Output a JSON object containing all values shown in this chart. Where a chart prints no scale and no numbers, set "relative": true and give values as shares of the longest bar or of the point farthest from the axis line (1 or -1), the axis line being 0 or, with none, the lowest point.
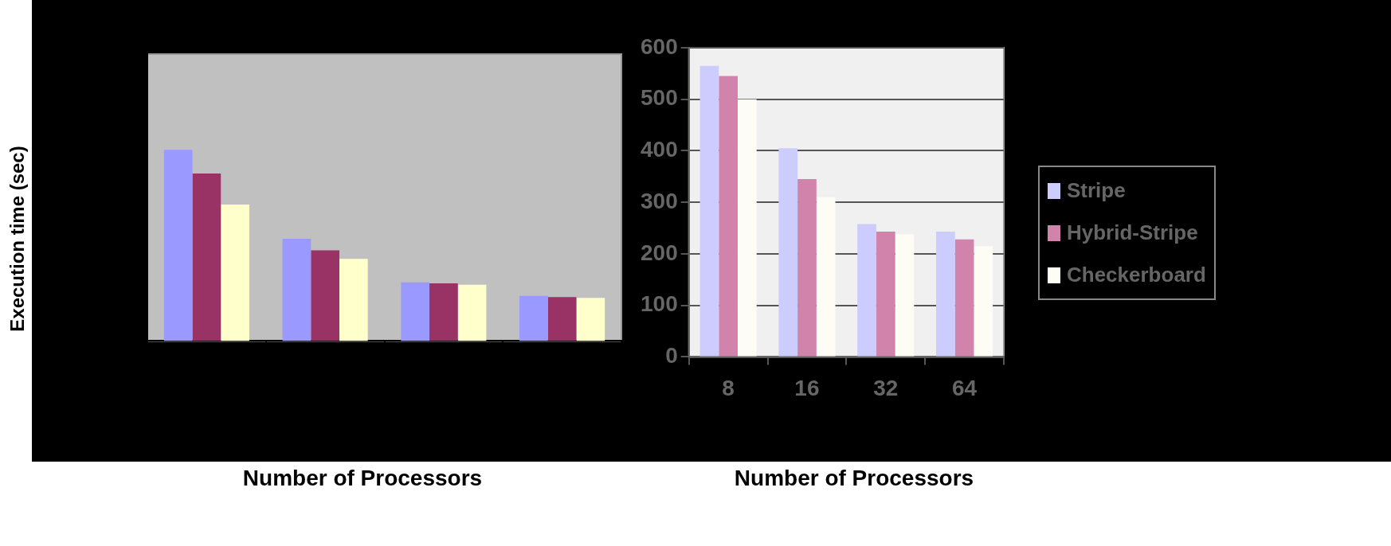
{
  "chart_data": [
    {
      "type": "bar",
      "relative": true,
      "ylabel": "Execution time (sec)",
      "xlabel": "Number of Processors",
      "categories": [
        null,
        null,
        null,
        null
      ],
      "series": [
        {
          "color": "#9999ff",
          "values": [
            1,
            0.534,
            0.307,
            0.236
          ]
        },
        {
          "color": "#993366",
          "values": [
            0.876,
            0.474,
            0.301,
            0.23
          ]
        },
        {
          "color": "#ffffcc",
          "values": [
            0.713,
            0.429,
            0.294,
            0.225
          ]
        }
      ]
    },
    {
      "type": "bar",
      "xlabel": "Number of Processors",
      "categories": [
        "8",
        "16",
        "32",
        "64"
      ],
      "ylim": [
        0,
        600
      ],
      "yticks": [
        0,
        100,
        200,
        300,
        400,
        500,
        600
      ],
      "grid": "y",
      "legend": "right",
      "series": [
        {
          "name": "Stripe",
          "color": "#ccccff",
          "values": [
            565,
            405,
            258,
            243
          ]
        },
        {
          "name": "Hybrid-Stripe",
          "color": "#d183ab",
          "values": [
            545,
            345,
            243,
            228
          ]
        },
        {
          "name": "Checkerboard",
          "color": "#fdfdf5",
          "values": [
            500,
            310,
            238,
            215
          ]
        }
      ]
    }
  ]
}
